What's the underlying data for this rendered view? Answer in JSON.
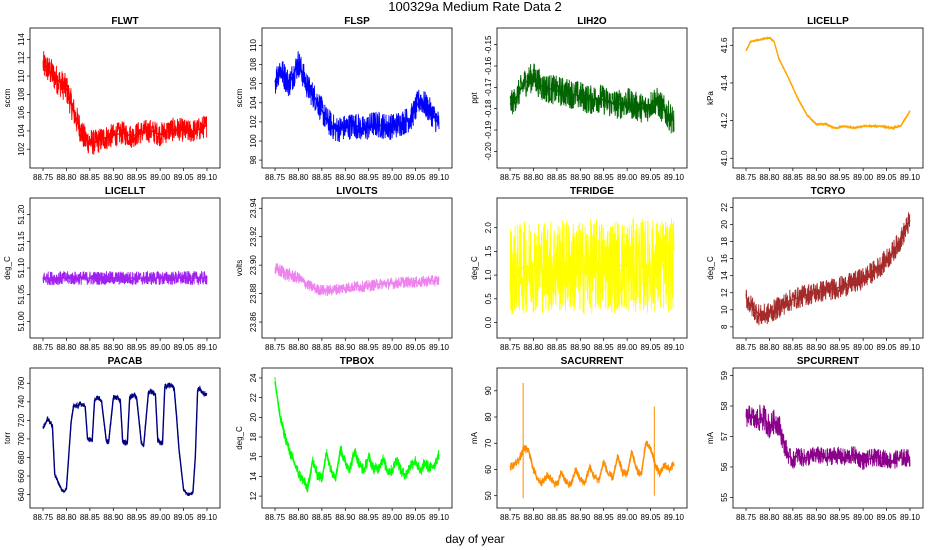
{
  "figure": {
    "title": "100329a   Medium Rate Data 2",
    "xlabel": "day of year"
  },
  "chart_data": [
    {
      "type": "line",
      "title": "FLWT",
      "ylabel": "sccm",
      "color": "#ff0000",
      "ylim": [
        100.6,
        114.6
      ],
      "yticks": [
        102,
        104,
        106,
        108,
        110,
        112,
        114
      ],
      "xlim": [
        88.735,
        89.115
      ],
      "xticks": [
        88.75,
        88.8,
        88.85,
        88.9,
        88.95,
        89.0,
        89.05,
        89.1
      ],
      "x": [
        88.75,
        88.76,
        88.78,
        88.8,
        88.82,
        88.84,
        88.86,
        88.88,
        88.9,
        88.92,
        88.94,
        88.96,
        88.98,
        89.0,
        89.02,
        89.04,
        89.06,
        89.08,
        89.1
      ],
      "y": [
        111.2,
        110.8,
        109.6,
        108.6,
        105.4,
        103.0,
        102.7,
        103.2,
        103.5,
        103.8,
        103.4,
        103.9,
        104.0,
        103.6,
        104.1,
        104.2,
        103.9,
        104.1,
        104.6
      ],
      "band": [
        1.6,
        1.6,
        1.6,
        1.6,
        1.6,
        1.5,
        1.4,
        1.4,
        1.3,
        1.3,
        1.3,
        1.3,
        1.3,
        1.3,
        1.3,
        1.3,
        1.3,
        1.3,
        1.3
      ]
    },
    {
      "type": "line",
      "title": "FLSP",
      "ylabel": "sccm",
      "color": "#0000ff",
      "ylim": [
        97.8,
        111.2
      ],
      "yticks": [
        98,
        100,
        102,
        104,
        106,
        108,
        110
      ],
      "xlim": [
        88.735,
        89.115
      ],
      "xticks": [
        88.75,
        88.8,
        88.85,
        88.9,
        88.95,
        89.0,
        89.05,
        89.1
      ],
      "x": [
        88.75,
        88.76,
        88.78,
        88.8,
        88.82,
        88.84,
        88.86,
        88.88,
        88.9,
        88.92,
        88.94,
        88.96,
        88.98,
        89.0,
        89.02,
        89.04,
        89.06,
        89.08,
        89.1
      ],
      "y": [
        106.2,
        107.6,
        106.0,
        108.2,
        105.6,
        104.2,
        102.2,
        101.2,
        101.4,
        101.7,
        101.2,
        101.8,
        101.6,
        101.5,
        101.9,
        102.4,
        104.4,
        103.2,
        101.8
      ],
      "band": [
        1.5,
        1.5,
        1.5,
        1.5,
        1.4,
        1.4,
        1.4,
        1.4,
        1.4,
        1.4,
        1.4,
        1.4,
        1.4,
        1.4,
        1.4,
        1.4,
        1.4,
        1.4,
        1.4
      ]
    },
    {
      "type": "line",
      "title": "LIH2O",
      "ylabel": "ppt",
      "color": "#006400",
      "ylim": [
        -0.205,
        -0.145
      ],
      "yticks": [
        -0.2,
        -0.19,
        -0.18,
        -0.17,
        -0.16,
        -0.15
      ],
      "xlim": [
        88.735,
        89.115
      ],
      "xticks": [
        88.75,
        88.8,
        88.85,
        88.9,
        88.95,
        89.0,
        89.05,
        89.1
      ],
      "x": [
        88.75,
        88.76,
        88.78,
        88.8,
        88.82,
        88.84,
        88.86,
        88.88,
        88.9,
        88.92,
        88.94,
        88.96,
        88.98,
        89.0,
        89.02,
        89.04,
        89.06,
        89.08,
        89.1
      ],
      "y": [
        -0.178,
        -0.176,
        -0.168,
        -0.165,
        -0.17,
        -0.171,
        -0.172,
        -0.173,
        -0.174,
        -0.176,
        -0.175,
        -0.177,
        -0.178,
        -0.177,
        -0.179,
        -0.18,
        -0.176,
        -0.181,
        -0.186
      ],
      "band": [
        0.006,
        0.006,
        0.007,
        0.007,
        0.007,
        0.007,
        0.007,
        0.007,
        0.007,
        0.007,
        0.007,
        0.007,
        0.007,
        0.007,
        0.007,
        0.007,
        0.007,
        0.007,
        0.007
      ]
    },
    {
      "type": "line",
      "title": "LICELLP",
      "ylabel": "kPa",
      "color": "#ffa500",
      "ylim": [
        40.98,
        41.66
      ],
      "yticks": [
        41.0,
        41.2,
        41.4,
        41.6
      ],
      "xlim": [
        88.735,
        89.115
      ],
      "xticks": [
        88.75,
        88.8,
        88.85,
        88.9,
        88.95,
        89.0,
        89.05,
        89.1
      ],
      "x": [
        88.75,
        88.76,
        88.78,
        88.8,
        88.81,
        88.82,
        88.84,
        88.86,
        88.88,
        88.9,
        88.92,
        88.94,
        88.96,
        88.98,
        89.0,
        89.02,
        89.04,
        89.06,
        89.08,
        89.1
      ],
      "y": [
        41.57,
        41.62,
        41.63,
        41.64,
        41.62,
        41.53,
        41.43,
        41.32,
        41.23,
        41.18,
        41.18,
        41.16,
        41.17,
        41.16,
        41.17,
        41.17,
        41.17,
        41.16,
        41.17,
        41.25
      ],
      "band": [
        0.005,
        0.005,
        0.005,
        0.005,
        0.005,
        0.005,
        0.005,
        0.005,
        0.005,
        0.007,
        0.007,
        0.007,
        0.007,
        0.007,
        0.007,
        0.007,
        0.007,
        0.007,
        0.007,
        0.007
      ]
    },
    {
      "type": "line",
      "title": "LICELLT",
      "ylabel": "deg_C",
      "color": "#a020f0",
      "ylim": [
        50.98,
        51.22
      ],
      "yticks": [
        51.0,
        51.05,
        51.1,
        51.15,
        51.2
      ],
      "xlim": [
        88.735,
        89.115
      ],
      "xticks": [
        88.75,
        88.8,
        88.85,
        88.9,
        88.95,
        89.0,
        89.05,
        89.1
      ],
      "x": [
        88.75,
        88.8,
        88.85,
        88.9,
        88.95,
        89.0,
        89.05,
        89.1
      ],
      "y": [
        51.081,
        51.081,
        51.081,
        51.081,
        51.081,
        51.081,
        51.081,
        51.081
      ],
      "band": [
        0.013,
        0.013,
        0.013,
        0.013,
        0.013,
        0.013,
        0.013,
        0.013
      ]
    },
    {
      "type": "line",
      "title": "LIVOLTS",
      "ylabel": "volts",
      "color": "#ee82ee",
      "ylim": [
        23.853,
        23.943
      ],
      "yticks": [
        23.86,
        23.88,
        23.9,
        23.92,
        23.94
      ],
      "xlim": [
        88.735,
        89.115
      ],
      "xticks": [
        88.75,
        88.8,
        88.85,
        88.9,
        88.95,
        89.0,
        89.05,
        89.1
      ],
      "x": [
        88.75,
        88.76,
        88.78,
        88.8,
        88.82,
        88.84,
        88.86,
        88.88,
        88.9,
        88.92,
        88.94,
        88.96,
        88.98,
        89.0,
        89.02,
        89.04,
        89.06,
        89.08,
        89.1
      ],
      "y": [
        23.897,
        23.896,
        23.893,
        23.891,
        23.886,
        23.883,
        23.882,
        23.883,
        23.884,
        23.885,
        23.885,
        23.886,
        23.887,
        23.887,
        23.888,
        23.888,
        23.888,
        23.889,
        23.889
      ],
      "band": [
        0.005,
        0.005,
        0.005,
        0.004,
        0.004,
        0.004,
        0.004,
        0.004,
        0.004,
        0.004,
        0.004,
        0.004,
        0.004,
        0.004,
        0.004,
        0.004,
        0.004,
        0.004,
        0.004
      ]
    },
    {
      "type": "line",
      "title": "TFRIDGE",
      "ylabel": "deg_C",
      "color": "#ffff00",
      "ylim": [
        -0.2,
        2.5
      ],
      "yticks": [
        0.0,
        0.5,
        1.0,
        1.5,
        2.0
      ],
      "xlim": [
        88.735,
        89.115
      ],
      "xticks": [
        88.75,
        88.8,
        88.85,
        88.9,
        88.95,
        89.0,
        89.05,
        89.1
      ],
      "x": [
        88.75,
        88.8,
        88.85,
        88.9,
        88.95,
        89.0,
        89.05,
        89.1
      ],
      "y": [
        1.1,
        1.2,
        1.2,
        1.15,
        1.2,
        1.2,
        1.2,
        1.2
      ],
      "band": [
        0.95,
        1.0,
        1.0,
        1.0,
        1.0,
        1.0,
        1.0,
        1.0
      ]
    },
    {
      "type": "line",
      "title": "TCRYO",
      "ylabel": "deg_C",
      "color": "#a52a2a",
      "ylim": [
        7.4,
        22.4
      ],
      "yticks": [
        8,
        10,
        12,
        14,
        16,
        18,
        20,
        22
      ],
      "xlim": [
        88.735,
        89.115
      ],
      "xticks": [
        88.75,
        88.8,
        88.85,
        88.9,
        88.95,
        89.0,
        89.05,
        89.1
      ],
      "x": [
        88.75,
        88.76,
        88.78,
        88.8,
        88.82,
        88.84,
        88.86,
        88.88,
        88.9,
        88.92,
        88.94,
        88.96,
        88.98,
        89.0,
        89.02,
        89.04,
        89.06,
        89.08,
        89.1
      ],
      "y": [
        11.5,
        10.5,
        9.3,
        9.6,
        10.3,
        11.0,
        11.4,
        11.8,
        12.0,
        12.3,
        12.5,
        12.8,
        13.2,
        13.7,
        14.4,
        15.3,
        16.5,
        18.2,
        20.5
      ],
      "band": [
        1.3,
        1.3,
        1.3,
        1.3,
        1.3,
        1.3,
        1.3,
        1.3,
        1.3,
        1.3,
        1.3,
        1.3,
        1.3,
        1.3,
        1.3,
        1.3,
        1.3,
        1.3,
        1.3
      ]
    },
    {
      "type": "line",
      "title": "PACAB",
      "ylabel": "torr",
      "color": "#000080",
      "ylim": [
        632,
        770
      ],
      "yticks": [
        640,
        660,
        680,
        700,
        720,
        740,
        760
      ],
      "xlim": [
        88.735,
        89.115
      ],
      "xticks": [
        88.75,
        88.8,
        88.85,
        88.9,
        88.95,
        89.0,
        89.05,
        89.1
      ],
      "x": [
        88.75,
        88.755,
        88.76,
        88.77,
        88.775,
        88.79,
        88.795,
        88.8,
        88.81,
        88.815,
        88.825,
        88.83,
        88.84,
        88.845,
        88.855,
        88.86,
        88.87,
        88.875,
        88.885,
        88.89,
        88.9,
        88.905,
        88.915,
        88.92,
        88.93,
        88.935,
        88.945,
        88.95,
        88.96,
        88.965,
        88.975,
        88.98,
        88.99,
        88.995,
        89.005,
        89.01,
        89.02,
        89.025,
        89.03,
        89.035,
        89.04,
        89.05,
        89.055,
        89.06,
        89.07,
        89.075,
        89.08,
        89.085,
        89.09,
        89.1
      ],
      "y": [
        712,
        716,
        722,
        714,
        662,
        645,
        643,
        646,
        718,
        735,
        736,
        738,
        735,
        700,
        698,
        742,
        744,
        740,
        698,
        696,
        744,
        746,
        742,
        697,
        695,
        745,
        748,
        744,
        695,
        693,
        750,
        752,
        748,
        698,
        695,
        756,
        758,
        757,
        754,
        725,
        690,
        645,
        642,
        640,
        642,
        680,
        752,
        755,
        750,
        748
      ],
      "band": [
        3,
        3,
        3,
        3,
        3,
        2,
        2,
        2,
        3,
        3,
        3,
        3,
        3,
        3,
        3,
        3,
        3,
        3,
        3,
        3,
        3,
        3,
        3,
        3,
        3,
        3,
        3,
        3,
        3,
        3,
        3,
        3,
        3,
        3,
        3,
        3,
        3,
        3,
        3,
        3,
        3,
        2,
        2,
        2,
        2,
        3,
        3,
        3,
        3,
        3
      ]
    },
    {
      "type": "line",
      "title": "TPBOX",
      "ylabel": "deg_C",
      "color": "#00ff00",
      "ylim": [
        11.4,
        24.4
      ],
      "yticks": [
        12,
        14,
        16,
        18,
        20,
        22,
        24
      ],
      "xlim": [
        88.735,
        89.115
      ],
      "xticks": [
        88.75,
        88.8,
        88.85,
        88.9,
        88.95,
        89.0,
        89.05,
        89.1
      ],
      "x": [
        88.75,
        88.755,
        88.76,
        88.77,
        88.78,
        88.79,
        88.8,
        88.81,
        88.82,
        88.83,
        88.84,
        88.85,
        88.86,
        88.87,
        88.88,
        88.89,
        88.9,
        88.91,
        88.92,
        88.93,
        88.94,
        88.95,
        88.96,
        88.97,
        88.98,
        88.99,
        89.0,
        89.01,
        89.02,
        89.03,
        89.04,
        89.05,
        89.06,
        89.07,
        89.08,
        89.09,
        89.1
      ],
      "y": [
        23.6,
        22.0,
        20.2,
        18.3,
        16.7,
        15.5,
        14.3,
        13.6,
        12.8,
        15.6,
        14.2,
        13.8,
        16.4,
        14.6,
        14.0,
        16.8,
        15.4,
        14.8,
        16.6,
        15.2,
        14.6,
        16.0,
        14.8,
        14.8,
        15.8,
        14.6,
        14.6,
        15.8,
        14.4,
        14.2,
        15.2,
        15.6,
        14.4,
        15.4,
        14.8,
        15.2,
        16.2
      ],
      "band": [
        0.6,
        0.6,
        0.6,
        0.6,
        0.6,
        0.6,
        0.6,
        0.6,
        0.6,
        0.6,
        0.6,
        0.6,
        0.6,
        0.6,
        0.6,
        0.6,
        0.6,
        0.6,
        0.6,
        0.6,
        0.6,
        0.6,
        0.6,
        0.6,
        0.6,
        0.6,
        0.6,
        0.6,
        0.6,
        0.6,
        0.6,
        0.6,
        0.6,
        0.6,
        0.6,
        0.6,
        0.6
      ]
    },
    {
      "type": "line",
      "title": "SACURRENT",
      "ylabel": "mA",
      "color": "#ff8c00",
      "ylim": [
        47.6,
        96.4
      ],
      "yticks": [
        50,
        60,
        70,
        80,
        90
      ],
      "xlim": [
        88.735,
        89.115
      ],
      "xticks": [
        88.75,
        88.8,
        88.85,
        88.9,
        88.95,
        89.0,
        89.05,
        89.1
      ],
      "x": [
        88.75,
        88.76,
        88.77,
        88.78,
        88.79,
        88.8,
        88.81,
        88.82,
        88.83,
        88.84,
        88.85,
        88.86,
        88.87,
        88.88,
        88.89,
        88.9,
        88.91,
        88.92,
        88.93,
        88.94,
        88.95,
        88.96,
        88.97,
        88.98,
        88.99,
        89.0,
        89.01,
        89.02,
        89.03,
        89.04,
        89.05,
        89.06,
        89.07,
        89.08,
        89.09,
        89.1
      ],
      "y": [
        61,
        62,
        64,
        68,
        67,
        60,
        56,
        55,
        58,
        56,
        54,
        59,
        55,
        54,
        60,
        56,
        55,
        61,
        57,
        56,
        63,
        58,
        57,
        65,
        59,
        58,
        67,
        60,
        58,
        70,
        68,
        62,
        58,
        62,
        60,
        62
      ],
      "band": [
        1.6,
        1.6,
        1.6,
        1.6,
        1.6,
        1.6,
        1.6,
        1.6,
        1.6,
        1.6,
        1.6,
        1.6,
        1.6,
        1.6,
        1.6,
        1.6,
        1.6,
        1.6,
        1.6,
        1.6,
        1.6,
        1.6,
        1.6,
        1.6,
        1.6,
        1.6,
        1.6,
        1.6,
        1.6,
        1.6,
        1.6,
        1.6,
        1.6,
        1.6,
        1.6,
        1.6
      ],
      "spikes": [
        [
          88.778,
          93.0
        ],
        [
          88.778,
          49.0
        ],
        [
          89.058,
          84.0
        ],
        [
          89.058,
          50.0
        ]
      ]
    },
    {
      "type": "line",
      "title": "SPCURRENT",
      "ylabel": "mA",
      "color": "#8b008b",
      "ylim": [
        54.85,
        59.05
      ],
      "yticks": [
        55,
        56,
        57,
        58,
        59
      ],
      "xlim": [
        88.735,
        89.115
      ],
      "xticks": [
        88.75,
        88.8,
        88.85,
        88.9,
        88.95,
        89.0,
        89.05,
        89.1
      ],
      "x": [
        88.75,
        88.76,
        88.77,
        88.78,
        88.79,
        88.8,
        88.81,
        88.82,
        88.83,
        88.84,
        88.85,
        88.86,
        88.87,
        88.88,
        88.9,
        88.92,
        88.94,
        88.96,
        88.98,
        89.0,
        89.02,
        89.04,
        89.06,
        89.08,
        89.1
      ],
      "y": [
        57.6,
        57.7,
        57.5,
        57.6,
        57.6,
        57.3,
        57.5,
        57.4,
        56.8,
        56.4,
        56.2,
        56.4,
        56.3,
        56.3,
        56.4,
        56.3,
        56.4,
        56.3,
        56.4,
        56.2,
        56.3,
        56.3,
        56.2,
        56.3,
        56.3
      ],
      "band": [
        0.35,
        0.35,
        0.4,
        0.45,
        0.45,
        0.4,
        0.4,
        0.4,
        0.35,
        0.3,
        0.3,
        0.3,
        0.3,
        0.3,
        0.3,
        0.3,
        0.3,
        0.3,
        0.3,
        0.3,
        0.3,
        0.3,
        0.3,
        0.3,
        0.3
      ]
    }
  ]
}
